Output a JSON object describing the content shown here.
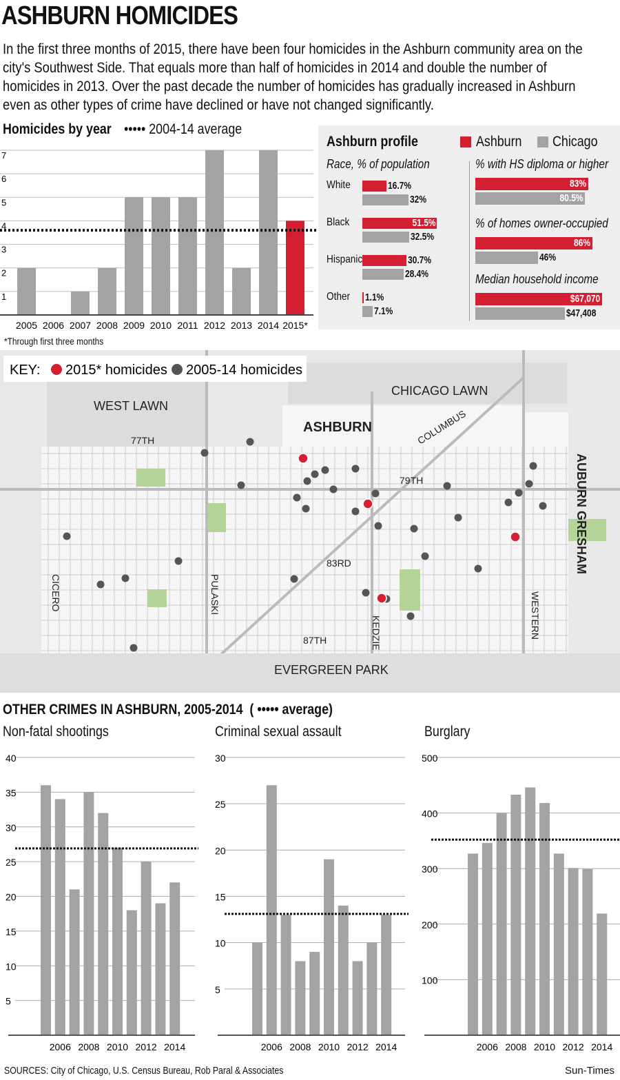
{
  "title": "ASHBURN HOMICIDES",
  "intro": "In the first three months of 2015, there have been four homicides in the Ashburn community area on the city's Southwest Side. That equals more than half of homicides in 2014 and double the number of homicides in 2013. Over the past decade the number of homicides has gradually increased in Ashburn even as other types of crime have declined or have not changed significantly.",
  "colors": {
    "ashburn": "#d41f33",
    "chicago": "#a3a3a3",
    "dark_dot": "#555555"
  },
  "chart_data": [
    {
      "type": "bar",
      "title": "Homicides by year",
      "legend": "2004-14 average",
      "categories": [
        "2005",
        "2006",
        "2007",
        "2008",
        "2009",
        "2010",
        "2011",
        "2012",
        "2013",
        "2014",
        "2015*"
      ],
      "values": [
        2,
        0,
        1,
        2,
        5,
        5,
        5,
        7,
        2,
        7,
        4
      ],
      "highlight": "2015*",
      "average": 3.6,
      "ylim": [
        0,
        7
      ],
      "yticks": [
        "1",
        "2",
        "3",
        "4",
        "5",
        "6",
        "7"
      ],
      "footnote": "*Through first three months"
    },
    {
      "type": "bar",
      "title": "Non-fatal shootings",
      "categories": [
        "2005",
        "2006",
        "2007",
        "2008",
        "2009",
        "2010",
        "2011",
        "2012",
        "2013",
        "2014"
      ],
      "xticks": [
        "2006",
        "2008",
        "2010",
        "2012",
        "2014"
      ],
      "values": [
        36,
        34,
        21,
        35,
        32,
        27,
        18,
        25,
        19,
        22
      ],
      "average": 26.9,
      "ylim": [
        0,
        40
      ],
      "yticks": [
        "5",
        "10",
        "15",
        "20",
        "25",
        "30",
        "35",
        "40"
      ]
    },
    {
      "type": "bar",
      "title": "Criminal sexual assault",
      "categories": [
        "2005",
        "2006",
        "2007",
        "2008",
        "2009",
        "2010",
        "2011",
        "2012",
        "2013",
        "2014"
      ],
      "xticks": [
        "2006",
        "2008",
        "2010",
        "2012",
        "2014"
      ],
      "values": [
        10,
        27,
        13,
        8,
        9,
        19,
        14,
        8,
        10,
        13
      ],
      "average": 13.1,
      "ylim": [
        0,
        30
      ],
      "yticks": [
        "5",
        "10",
        "15",
        "20",
        "25",
        "30"
      ]
    },
    {
      "type": "bar",
      "title": "Burglary",
      "categories": [
        "2005",
        "2006",
        "2007",
        "2008",
        "2009",
        "2010",
        "2011",
        "2012",
        "2013",
        "2014"
      ],
      "xticks": [
        "2006",
        "2008",
        "2010",
        "2012",
        "2014"
      ],
      "values": [
        327,
        346,
        400,
        433,
        446,
        418,
        327,
        301,
        299,
        219
      ],
      "average": 352,
      "ylim": [
        0,
        500
      ],
      "yticks": [
        "100",
        "200",
        "300",
        "400",
        "500"
      ]
    }
  ],
  "profile": {
    "title": "Ashburn profile",
    "legend_ashburn": "Ashburn",
    "legend_chicago": "Chicago",
    "race_title": "Race, % of population",
    "race": [
      {
        "label": "White",
        "ashburn": 16.7,
        "chicago": 32,
        "ashburn_label": "16.7%",
        "chicago_label": "32%"
      },
      {
        "label": "Black",
        "ashburn": 51.5,
        "chicago": 32.5,
        "ashburn_label": "51.5%",
        "chicago_label": "32.5%"
      },
      {
        "label": "Hispanic",
        "ashburn": 30.7,
        "chicago": 28.4,
        "ashburn_label": "30.7%",
        "chicago_label": "28.4%"
      },
      {
        "label": "Other",
        "ashburn": 1.1,
        "chicago": 7.1,
        "ashburn_label": "1.1%",
        "chicago_label": "7.1%"
      }
    ],
    "hs_title": "% with HS diploma or higher",
    "hs": {
      "ashburn": 83,
      "chicago": 80.5,
      "ashburn_label": "83%",
      "chicago_label": "80.5%"
    },
    "own_title": "% of homes owner-occupied",
    "own": {
      "ashburn": 86,
      "chicago": 46,
      "ashburn_label": "86%",
      "chicago_label": "46%"
    },
    "inc_title": "Median household income",
    "inc": {
      "ashburn": 67070,
      "chicago": 47408,
      "ashburn_label": "$67,070",
      "chicago_label": "$47,408"
    }
  },
  "map": {
    "key": "KEY:",
    "key_2015": "2015* homicides",
    "key_past": "2005-14 homicides",
    "labels": {
      "west_lawn": "WEST LAWN",
      "chicago_lawn": "CHICAGO LAWN",
      "ashburn": "ASHBURN",
      "columbus": "COLUMBUS",
      "s77": "77TH",
      "s79": "79TH",
      "s83": "83RD",
      "s87": "87TH",
      "cicero": "CICERO",
      "pulaski": "PULASKI",
      "kedzie": "KEDZIE",
      "western": "WESTERN",
      "auburn": "AUBURN GRESHAM",
      "evergreen": "EVERGREEN PARK"
    }
  },
  "other_title": "OTHER CRIMES IN ASHBURN, 2005-2014",
  "other_avg": "( ••••• average)",
  "sources": "SOURCES: City of Chicago, U.S. Census Bureau, Rob Paral & Associates",
  "credit": "Sun-Times"
}
